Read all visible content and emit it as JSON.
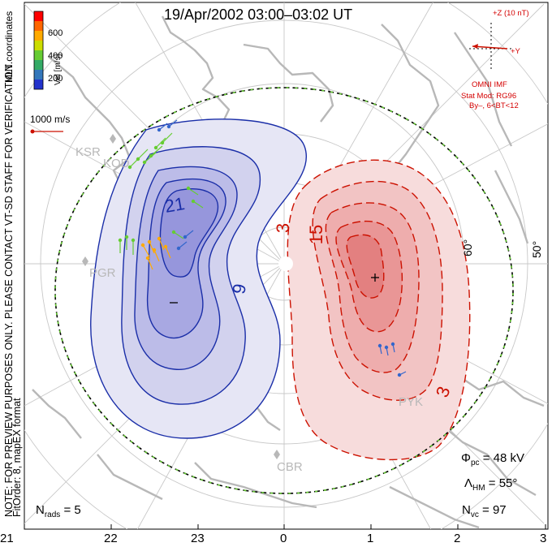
{
  "title": "19/Apr/2002 03:00–03:02 UT",
  "colorbar": {
    "label": "Vel [m/s]",
    "ticks": [
      "600",
      "400",
      "200"
    ],
    "colors": [
      "#ff0000",
      "#ff6600",
      "#ffaa00",
      "#ccdd00",
      "#66cc33",
      "#33aa66",
      "#3377bb",
      "#2233cc"
    ]
  },
  "coordinates_label": "MLT coordinates",
  "scale_label": "1000 m/s",
  "side_note": "NOTE: FOR PREVIEW PURPOSES ONLY. PLEASE CONTACT VT-SD STAFF FOR VERIFICATION.",
  "fit_label": "FitOrder: 8, mapEX format",
  "imf": {
    "z_label": "+Z (10 nT)",
    "y_label": "+Y",
    "source": "OMNI IMF",
    "model": "Stat Mod: RG96",
    "condition": "By–, 6<BT<12"
  },
  "stations": [
    "KSR",
    "KOD",
    "PGR",
    "PYK",
    "CBR"
  ],
  "latitude_labels": [
    "60°",
    "50°"
  ],
  "contour_labels": {
    "neg_inner": "21",
    "neg_outer": "9",
    "pos_outer": "3",
    "pos_mid": "15",
    "pos_low": "3"
  },
  "extrema": {
    "min": "–",
    "max": "+"
  },
  "stats": {
    "phi_pc": "Φpc = 48 kV",
    "phi_symbol": "Φ",
    "phi_sub": "pc",
    "phi_value": " = 48 kV",
    "lambda_symbol": "Λ",
    "lambda_sub": "HM",
    "lambda_value": " = 55°",
    "nvc_symbol": "N",
    "nvc_sub": "vc",
    "nvc_value": " = 97",
    "nrads_symbol": "N",
    "nrads_sub": "rads",
    "nrads_value": " = 5"
  },
  "mlt_labels": [
    "21",
    "22",
    "23",
    "0",
    "1",
    "2",
    "3"
  ]
}
